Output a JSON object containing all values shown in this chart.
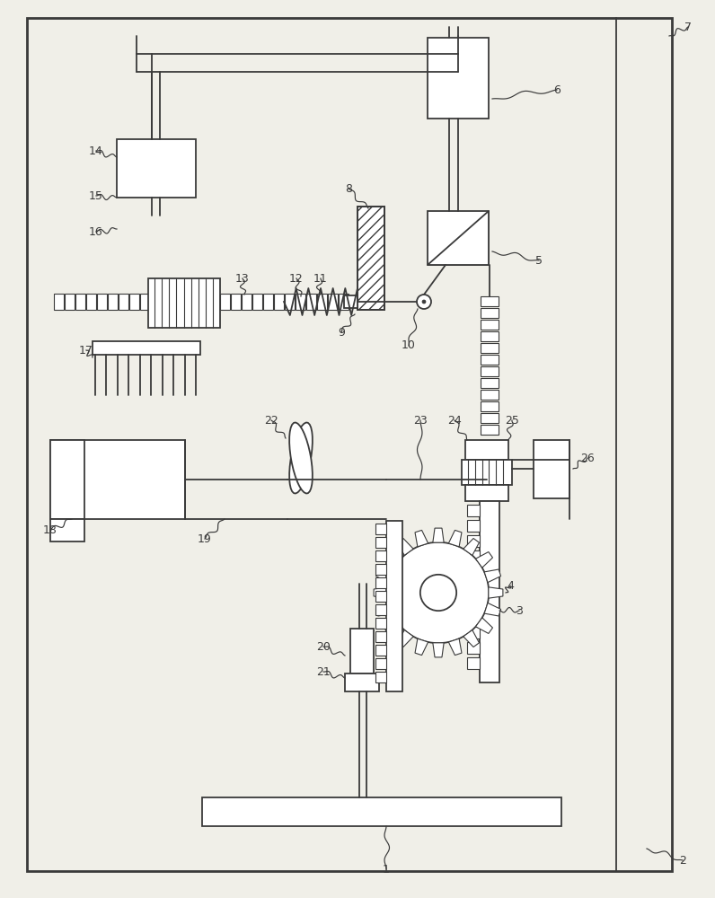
{
  "bg": "#f0efe8",
  "lc": "#3a3a3a",
  "lw": 1.3
}
